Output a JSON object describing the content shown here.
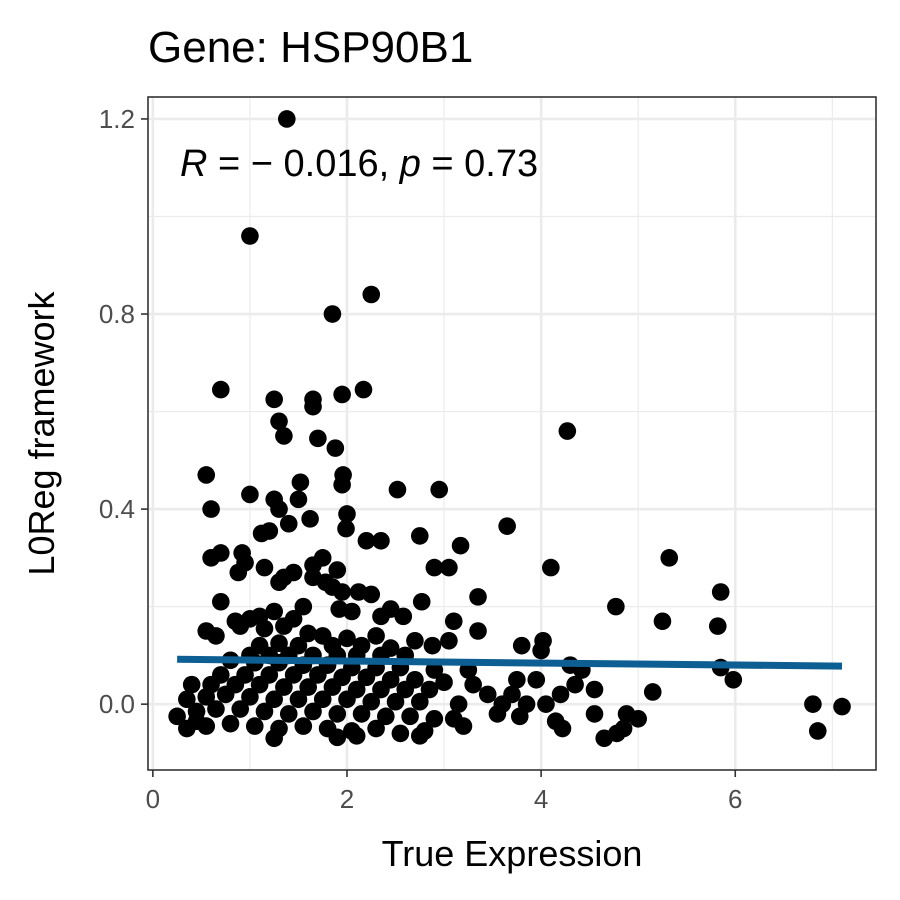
{
  "chart_data": {
    "type": "scatter",
    "title": "Gene: HSP90B1",
    "xlabel": "True Expression",
    "ylabel": "L0Reg framework",
    "xlim": [
      -0.05,
      7.45
    ],
    "ylim": [
      -0.135,
      1.245
    ],
    "xticks": [
      0,
      2,
      4,
      6
    ],
    "xtick_labels": [
      "0",
      "2",
      "4",
      "6"
    ],
    "yticks": [
      0.0,
      0.4,
      0.8,
      1.2
    ],
    "ytick_labels": [
      "0.0",
      "0.4",
      "0.8",
      "1.2"
    ],
    "grid": true,
    "legend": "none",
    "annotation": {
      "r_symbol": "R",
      "r_text": " = − 0.016, ",
      "p_symbol": "p",
      "p_text": " = 0.73"
    },
    "colors": {
      "point": "#000000",
      "fit_line": "#0d5f93",
      "grid": "#ebebeb",
      "panel_border": "#333333"
    },
    "fit_line": {
      "x": [
        0.25,
        7.1
      ],
      "y": [
        0.092,
        0.078
      ]
    },
    "points": [
      [
        1.38,
        1.2
      ],
      [
        1.0,
        0.96
      ],
      [
        2.25,
        0.84
      ],
      [
        1.85,
        0.8
      ],
      [
        0.7,
        0.645
      ],
      [
        2.17,
        0.645
      ],
      [
        1.95,
        0.635
      ],
      [
        1.25,
        0.625
      ],
      [
        1.65,
        0.625
      ],
      [
        1.65,
        0.61
      ],
      [
        1.3,
        0.58
      ],
      [
        4.27,
        0.56
      ],
      [
        1.35,
        0.55
      ],
      [
        1.7,
        0.545
      ],
      [
        1.88,
        0.525
      ],
      [
        0.55,
        0.47
      ],
      [
        1.96,
        0.47
      ],
      [
        1.95,
        0.45
      ],
      [
        1.52,
        0.455
      ],
      [
        2.52,
        0.44
      ],
      [
        2.95,
        0.44
      ],
      [
        1.0,
        0.43
      ],
      [
        1.25,
        0.42
      ],
      [
        1.5,
        0.42
      ],
      [
        1.3,
        0.4
      ],
      [
        0.6,
        0.4
      ],
      [
        2.0,
        0.39
      ],
      [
        1.62,
        0.38
      ],
      [
        1.4,
        0.37
      ],
      [
        1.2,
        0.355
      ],
      [
        1.12,
        0.35
      ],
      [
        3.65,
        0.365
      ],
      [
        1.99,
        0.36
      ],
      [
        2.2,
        0.335
      ],
      [
        2.35,
        0.335
      ],
      [
        2.75,
        0.345
      ],
      [
        3.17,
        0.325
      ],
      [
        0.7,
        0.31
      ],
      [
        0.92,
        0.31
      ],
      [
        0.6,
        0.3
      ],
      [
        1.75,
        0.3
      ],
      [
        5.32,
        0.3
      ],
      [
        0.95,
        0.29
      ],
      [
        1.15,
        0.28
      ],
      [
        1.65,
        0.285
      ],
      [
        2.9,
        0.28
      ],
      [
        3.05,
        0.28
      ],
      [
        4.1,
        0.28
      ],
      [
        1.9,
        0.275
      ],
      [
        0.88,
        0.27
      ],
      [
        1.45,
        0.27
      ],
      [
        1.35,
        0.26
      ],
      [
        1.65,
        0.26
      ],
      [
        1.3,
        0.25
      ],
      [
        1.78,
        0.25
      ],
      [
        1.85,
        0.24
      ],
      [
        1.95,
        0.23
      ],
      [
        2.12,
        0.23
      ],
      [
        2.25,
        0.225
      ],
      [
        3.35,
        0.22
      ],
      [
        5.85,
        0.23
      ],
      [
        0.7,
        0.21
      ],
      [
        1.55,
        0.2
      ],
      [
        2.45,
        0.195
      ],
      [
        2.77,
        0.21
      ],
      [
        4.77,
        0.2
      ],
      [
        1.92,
        0.195
      ],
      [
        2.05,
        0.19
      ],
      [
        1.25,
        0.19
      ],
      [
        2.35,
        0.18
      ],
      [
        1.1,
        0.18
      ],
      [
        1.45,
        0.175
      ],
      [
        2.58,
        0.18
      ],
      [
        3.1,
        0.17
      ],
      [
        0.85,
        0.17
      ],
      [
        1.0,
        0.175
      ],
      [
        5.25,
        0.17
      ],
      [
        5.82,
        0.16
      ],
      [
        0.55,
        0.15
      ],
      [
        0.65,
        0.14
      ],
      [
        0.9,
        0.16
      ],
      [
        1.15,
        0.155
      ],
      [
        1.35,
        0.16
      ],
      [
        1.6,
        0.145
      ],
      [
        1.75,
        0.14
      ],
      [
        2.0,
        0.135
      ],
      [
        2.3,
        0.14
      ],
      [
        2.7,
        0.13
      ],
      [
        3.05,
        0.13
      ],
      [
        3.35,
        0.15
      ],
      [
        4.02,
        0.13
      ],
      [
        1.1,
        0.12
      ],
      [
        1.3,
        0.125
      ],
      [
        1.5,
        0.12
      ],
      [
        1.85,
        0.12
      ],
      [
        2.15,
        0.12
      ],
      [
        2.45,
        0.115
      ],
      [
        2.88,
        0.12
      ],
      [
        3.8,
        0.12
      ],
      [
        4.0,
        0.11
      ],
      [
        1.0,
        0.1
      ],
      [
        1.2,
        0.1
      ],
      [
        1.4,
        0.1
      ],
      [
        1.65,
        0.1
      ],
      [
        1.9,
        0.1
      ],
      [
        2.1,
        0.1
      ],
      [
        2.35,
        0.1
      ],
      [
        2.6,
        0.1
      ],
      [
        4.3,
        0.08
      ],
      [
        4.42,
        0.07
      ],
      [
        5.85,
        0.075
      ],
      [
        0.8,
        0.09
      ],
      [
        1.05,
        0.085
      ],
      [
        1.3,
        0.085
      ],
      [
        1.55,
        0.08
      ],
      [
        1.8,
        0.08
      ],
      [
        2.05,
        0.075
      ],
      [
        2.3,
        0.075
      ],
      [
        2.55,
        0.075
      ],
      [
        2.9,
        0.07
      ],
      [
        3.25,
        0.07
      ],
      [
        0.7,
        0.06
      ],
      [
        0.95,
        0.06
      ],
      [
        1.2,
        0.06
      ],
      [
        1.45,
        0.06
      ],
      [
        1.7,
        0.06
      ],
      [
        1.95,
        0.055
      ],
      [
        2.2,
        0.055
      ],
      [
        2.45,
        0.05
      ],
      [
        2.7,
        0.05
      ],
      [
        3.0,
        0.045
      ],
      [
        3.3,
        0.04
      ],
      [
        3.75,
        0.05
      ],
      [
        3.95,
        0.05
      ],
      [
        4.35,
        0.04
      ],
      [
        5.98,
        0.05
      ],
      [
        0.4,
        0.04
      ],
      [
        0.6,
        0.04
      ],
      [
        0.85,
        0.04
      ],
      [
        1.1,
        0.04
      ],
      [
        1.35,
        0.035
      ],
      [
        1.6,
        0.035
      ],
      [
        1.85,
        0.035
      ],
      [
        2.1,
        0.03
      ],
      [
        2.35,
        0.03
      ],
      [
        2.6,
        0.03
      ],
      [
        2.85,
        0.03
      ],
      [
        3.45,
        0.02
      ],
      [
        3.7,
        0.02
      ],
      [
        4.2,
        0.02
      ],
      [
        4.55,
        0.03
      ],
      [
        5.15,
        0.025
      ],
      [
        0.35,
        0.01
      ],
      [
        0.55,
        0.015
      ],
      [
        0.75,
        0.02
      ],
      [
        1.0,
        0.015
      ],
      [
        1.25,
        0.01
      ],
      [
        1.5,
        0.01
      ],
      [
        1.75,
        0.01
      ],
      [
        2.0,
        0.01
      ],
      [
        2.25,
        0.005
      ],
      [
        2.5,
        0.005
      ],
      [
        2.75,
        0.005
      ],
      [
        3.15,
        0.0
      ],
      [
        3.6,
        0.0
      ],
      [
        3.85,
        0.0
      ],
      [
        4.05,
        0.0
      ],
      [
        6.8,
        0.0
      ],
      [
        7.1,
        -0.005
      ],
      [
        0.25,
        -0.025
      ],
      [
        0.45,
        -0.015
      ],
      [
        0.65,
        -0.01
      ],
      [
        0.9,
        -0.01
      ],
      [
        1.15,
        -0.015
      ],
      [
        1.4,
        -0.02
      ],
      [
        1.65,
        -0.015
      ],
      [
        1.9,
        -0.02
      ],
      [
        2.15,
        -0.02
      ],
      [
        2.4,
        -0.025
      ],
      [
        2.65,
        -0.025
      ],
      [
        2.9,
        -0.03
      ],
      [
        3.1,
        -0.03
      ],
      [
        3.55,
        -0.02
      ],
      [
        3.78,
        -0.025
      ],
      [
        4.15,
        -0.035
      ],
      [
        4.55,
        -0.02
      ],
      [
        4.88,
        -0.02
      ],
      [
        5.0,
        -0.03
      ],
      [
        0.35,
        -0.05
      ],
      [
        0.55,
        -0.045
      ],
      [
        0.8,
        -0.04
      ],
      [
        1.05,
        -0.045
      ],
      [
        1.3,
        -0.05
      ],
      [
        1.55,
        -0.045
      ],
      [
        1.8,
        -0.05
      ],
      [
        2.05,
        -0.055
      ],
      [
        2.3,
        -0.05
      ],
      [
        2.55,
        -0.06
      ],
      [
        2.8,
        -0.055
      ],
      [
        3.2,
        -0.045
      ],
      [
        4.22,
        -0.05
      ],
      [
        4.85,
        -0.05
      ],
      [
        6.85,
        -0.055
      ],
      [
        1.25,
        -0.07
      ],
      [
        1.9,
        -0.068
      ],
      [
        2.1,
        -0.065
      ],
      [
        2.75,
        -0.065
      ],
      [
        4.65,
        -0.07
      ],
      [
        4.78,
        -0.06
      ],
      [
        0.45,
        -0.035
      ]
    ]
  }
}
